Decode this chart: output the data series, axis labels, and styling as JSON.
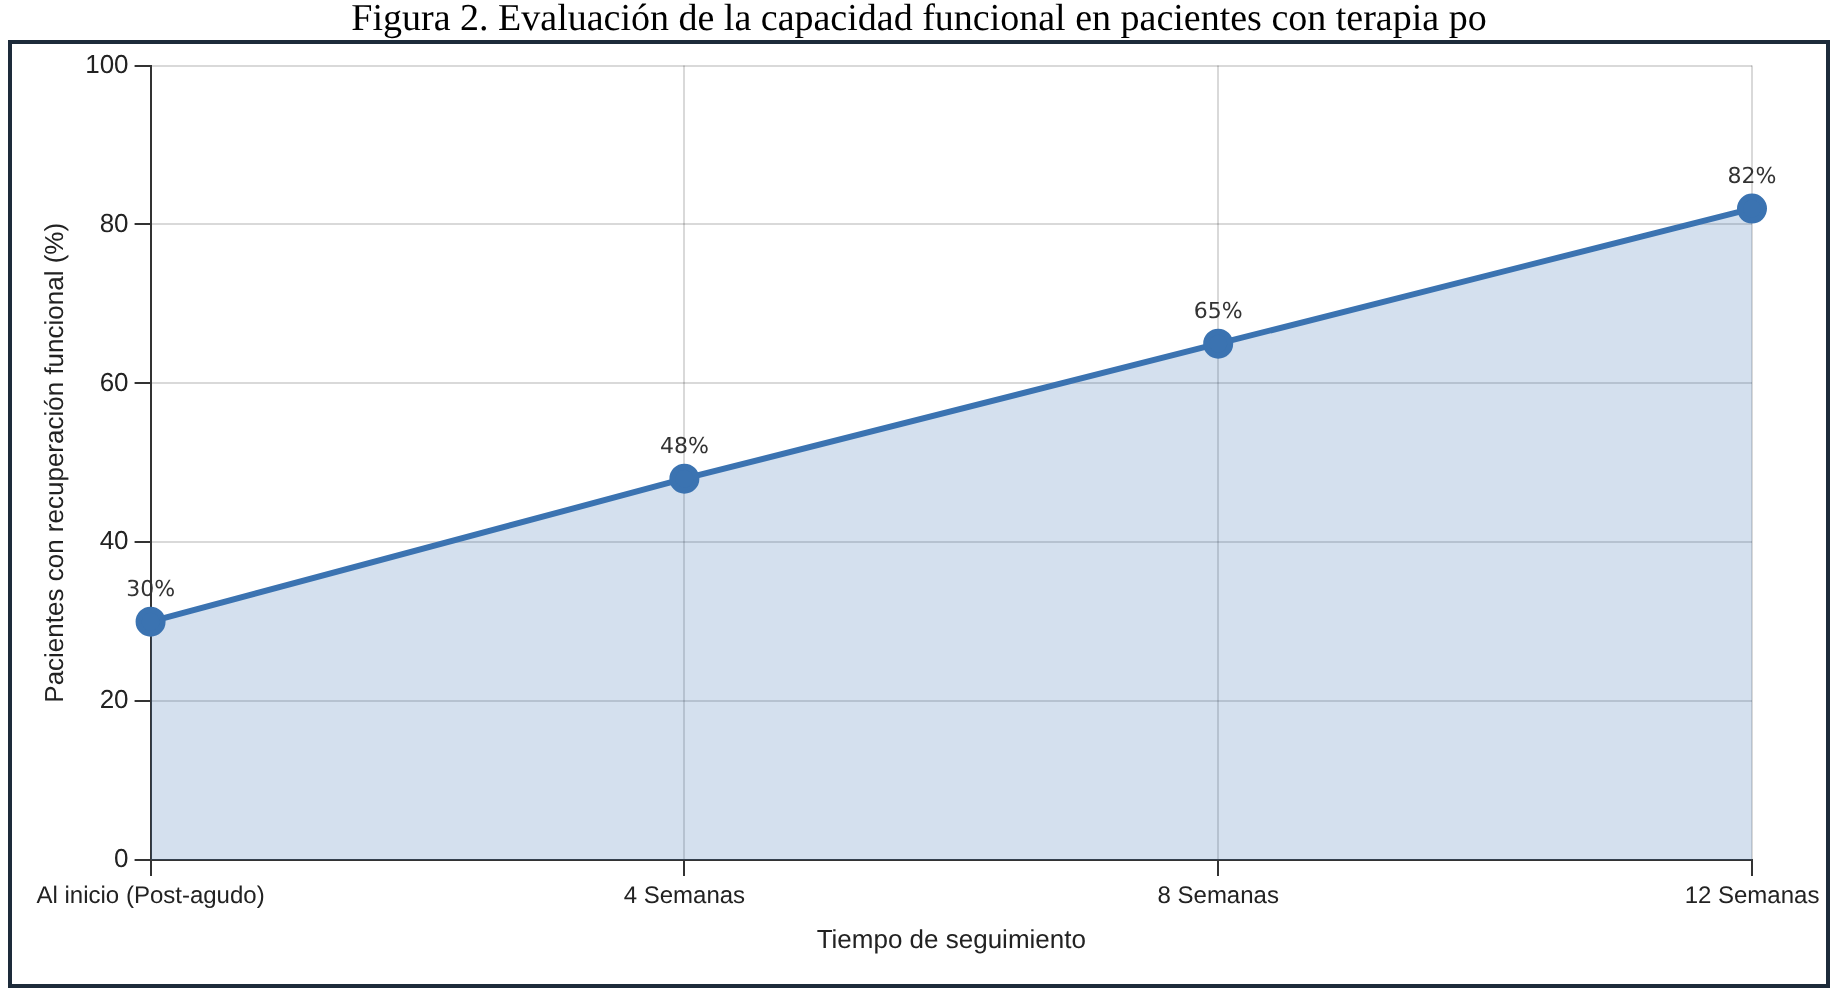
{
  "chart_data": {
    "type": "area",
    "title": "Figura 2. Evaluación de la capacidad funcional en pacientes con terapia po",
    "xlabel": "Tiempo de seguimiento",
    "ylabel": "Pacientes con recuperación funcional (%)",
    "categories": [
      "Al inicio (Post-agudo)",
      "4 Semanas",
      "8 Semanas",
      "12 Semanas"
    ],
    "values": [
      30,
      48,
      65,
      82
    ],
    "value_labels": [
      "30%",
      "48%",
      "65%",
      "82%"
    ],
    "color": "#3b73b1",
    "ylim": [
      0,
      100
    ],
    "yticks": [
      0,
      20,
      40,
      60,
      80,
      100
    ],
    "grid": true,
    "marker": "circle",
    "line_style": "solid"
  }
}
